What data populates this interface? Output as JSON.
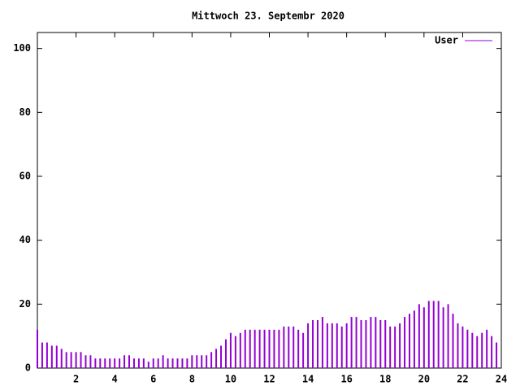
{
  "chart_data": {
    "type": "impulse",
    "title": "Mittwoch 23. Septembr 2020",
    "x": [
      0,
      0.25,
      0.5,
      0.75,
      1,
      1.25,
      1.5,
      1.75,
      2,
      2.25,
      2.5,
      2.75,
      3,
      3.25,
      3.5,
      3.75,
      4,
      4.25,
      4.5,
      4.75,
      5,
      5.25,
      5.5,
      5.75,
      6,
      6.25,
      6.5,
      6.75,
      7,
      7.25,
      7.5,
      7.75,
      8,
      8.25,
      8.5,
      8.75,
      9,
      9.25,
      9.5,
      9.75,
      10,
      10.25,
      10.5,
      10.75,
      11,
      11.25,
      11.5,
      11.75,
      12,
      12.25,
      12.5,
      12.75,
      13,
      13.25,
      13.5,
      13.75,
      14,
      14.25,
      14.5,
      14.75,
      15,
      15.25,
      15.5,
      15.75,
      16,
      16.25,
      16.5,
      16.75,
      17,
      17.25,
      17.5,
      17.75,
      18,
      18.25,
      18.5,
      18.75,
      19,
      19.25,
      19.5,
      19.75,
      20,
      20.25,
      20.5,
      20.75,
      21,
      21.25,
      21.5,
      21.75,
      22,
      22.25,
      22.5,
      22.75,
      23,
      23.25,
      23.5,
      23.75
    ],
    "series": [
      {
        "name": "User",
        "color": "#9400d3",
        "values": [
          12,
          8,
          8,
          7,
          7,
          6,
          5,
          5,
          5,
          5,
          4,
          4,
          3,
          3,
          3,
          3,
          3,
          3,
          4,
          4,
          3,
          3,
          3,
          2,
          3,
          3,
          4,
          3,
          3,
          3,
          3,
          3,
          4,
          4,
          4,
          4,
          5,
          6,
          7,
          9,
          11,
          10,
          11,
          12,
          12,
          12,
          12,
          12,
          12,
          12,
          12,
          13,
          13,
          13,
          12,
          11,
          14,
          15,
          15,
          16,
          14,
          14,
          14,
          13,
          14,
          16,
          16,
          15,
          15,
          16,
          16,
          15,
          15,
          13,
          13,
          14,
          16,
          17,
          18,
          20,
          19,
          21,
          21,
          21,
          19,
          20,
          17,
          14,
          13,
          12,
          11,
          10,
          11,
          12,
          10,
          8
        ]
      }
    ],
    "xlim": [
      0,
      24
    ],
    "xticks": [
      2,
      4,
      6,
      8,
      10,
      12,
      14,
      16,
      18,
      20,
      22,
      24
    ],
    "ylim": [
      0,
      105
    ],
    "yticks": [
      0,
      20,
      40,
      60,
      80,
      100
    ],
    "legend": "top-right"
  }
}
